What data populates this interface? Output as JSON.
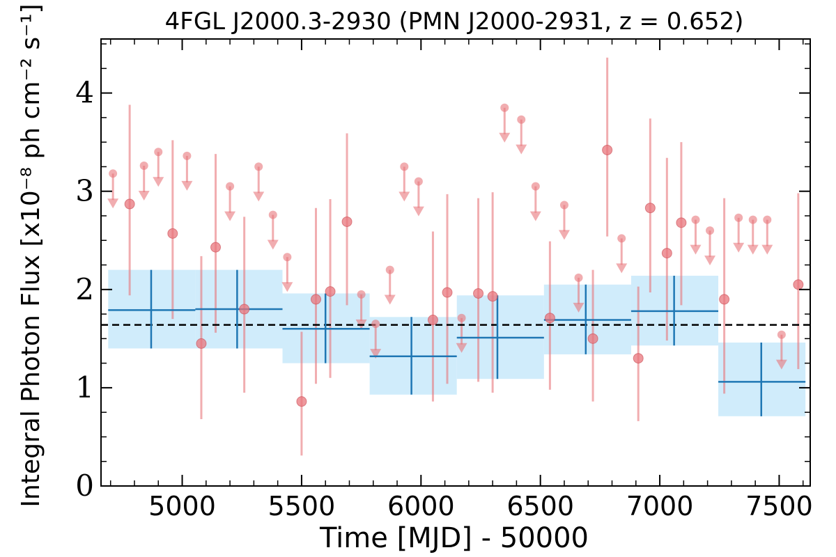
{
  "chart_data": {
    "type": "scatter",
    "title": "4FGL J2000.3-2930 (PMN J2000-2931, z = 0.652)",
    "xlabel": "Time [MJD] - 50000",
    "ylabel": "Integral Photon Flux [x10⁻⁸ ph cm⁻² s⁻¹]",
    "xlim": [
      4660,
      7630
    ],
    "ylim": [
      0,
      4.55
    ],
    "xticks": [
      5000,
      5500,
      6000,
      6500,
      7000,
      7500
    ],
    "xtick_labels": [
      "5000",
      "5500",
      "6000",
      "6500",
      "7000",
      "7500"
    ],
    "yticks": [
      0,
      1,
      2,
      3,
      4
    ],
    "ytick_labels": [
      "0",
      "1",
      "2",
      "3",
      "4"
    ],
    "grid": false,
    "colors": {
      "short_bin": "#e8767c",
      "long_bin": "#1f77b4",
      "long_bin_band": "#d0ecfb",
      "mean_line": "#000000"
    },
    "mean_flux": 1.64,
    "series": [
      {
        "role": "short_bin_detections",
        "points": [
          {
            "x": 4780,
            "y": 2.87,
            "lo": 1.94,
            "hi": 3.88
          },
          {
            "x": 4960,
            "y": 2.57,
            "lo": 1.7,
            "hi": 3.52
          },
          {
            "x": 5080,
            "y": 1.45,
            "lo": 0.68,
            "hi": 2.34
          },
          {
            "x": 5140,
            "y": 2.43,
            "lo": 1.56,
            "hi": 3.38
          },
          {
            "x": 5260,
            "y": 1.8,
            "lo": 0.95,
            "hi": 2.74
          },
          {
            "x": 5500,
            "y": 0.86,
            "lo": 0.31,
            "hi": 1.57
          },
          {
            "x": 5560,
            "y": 1.9,
            "lo": 1.04,
            "hi": 2.83
          },
          {
            "x": 5620,
            "y": 1.98,
            "lo": 1.1,
            "hi": 2.92
          },
          {
            "x": 5690,
            "y": 2.69,
            "lo": 1.84,
            "hi": 3.59
          },
          {
            "x": 6050,
            "y": 1.69,
            "lo": 0.86,
            "hi": 2.59
          },
          {
            "x": 6110,
            "y": 1.97,
            "lo": 1.04,
            "hi": 2.97
          },
          {
            "x": 6240,
            "y": 1.96,
            "lo": 1.06,
            "hi": 2.93
          },
          {
            "x": 6300,
            "y": 1.93,
            "lo": 0.95,
            "hi": 2.99
          },
          {
            "x": 6540,
            "y": 1.71,
            "lo": 0.98,
            "hi": 2.49
          },
          {
            "x": 6720,
            "y": 1.5,
            "lo": 0.86,
            "hi": 2.2
          },
          {
            "x": 6780,
            "y": 3.42,
            "lo": 2.54,
            "hi": 4.36
          },
          {
            "x": 6910,
            "y": 1.3,
            "lo": 0.66,
            "hi": 2.03
          },
          {
            "x": 6960,
            "y": 2.83,
            "lo": 1.97,
            "hi": 3.74
          },
          {
            "x": 7030,
            "y": 2.37,
            "lo": 1.48,
            "hi": 3.34
          },
          {
            "x": 7090,
            "y": 2.68,
            "lo": 1.84,
            "hi": 3.5
          },
          {
            "x": 7270,
            "y": 1.9,
            "lo": 0.94,
            "hi": 2.93
          },
          {
            "x": 7580,
            "y": 2.05,
            "lo": 1.19,
            "hi": 2.98
          }
        ]
      },
      {
        "role": "short_bin_upper_limits",
        "points": [
          {
            "x": 4710,
            "y": 3.18
          },
          {
            "x": 4840,
            "y": 3.26
          },
          {
            "x": 4900,
            "y": 3.4
          },
          {
            "x": 5020,
            "y": 3.36
          },
          {
            "x": 5200,
            "y": 3.05
          },
          {
            "x": 5320,
            "y": 3.25
          },
          {
            "x": 5380,
            "y": 2.76
          },
          {
            "x": 5440,
            "y": 2.33
          },
          {
            "x": 5750,
            "y": 1.95
          },
          {
            "x": 5810,
            "y": 1.65
          },
          {
            "x": 5870,
            "y": 2.2
          },
          {
            "x": 5930,
            "y": 3.25
          },
          {
            "x": 5990,
            "y": 3.1
          },
          {
            "x": 6170,
            "y": 1.71
          },
          {
            "x": 6350,
            "y": 3.85
          },
          {
            "x": 6420,
            "y": 3.73
          },
          {
            "x": 6480,
            "y": 3.05
          },
          {
            "x": 6600,
            "y": 2.86
          },
          {
            "x": 6660,
            "y": 2.12
          },
          {
            "x": 6840,
            "y": 2.52
          },
          {
            "x": 7150,
            "y": 2.71
          },
          {
            "x": 7210,
            "y": 2.6
          },
          {
            "x": 7330,
            "y": 2.73
          },
          {
            "x": 7390,
            "y": 2.71
          },
          {
            "x": 7450,
            "y": 2.71
          },
          {
            "x": 7510,
            "y": 1.54
          }
        ]
      },
      {
        "role": "long_bins",
        "bins": [
          {
            "x0": 4690,
            "x1": 5055,
            "y": 1.79,
            "lo": 1.4,
            "hi": 2.2,
            "xc": 4870
          },
          {
            "x0": 5055,
            "x1": 5420,
            "y": 1.8,
            "lo": 1.4,
            "hi": 2.2,
            "xc": 5230
          },
          {
            "x0": 5420,
            "x1": 5785,
            "y": 1.6,
            "lo": 1.25,
            "hi": 1.96,
            "xc": 5600
          },
          {
            "x0": 5785,
            "x1": 6150,
            "y": 1.32,
            "lo": 0.93,
            "hi": 1.72,
            "xc": 5960
          },
          {
            "x0": 6150,
            "x1": 6515,
            "y": 1.51,
            "lo": 1.09,
            "hi": 1.94,
            "xc": 6320
          },
          {
            "x0": 6515,
            "x1": 6880,
            "y": 1.69,
            "lo": 1.34,
            "hi": 2.05,
            "xc": 6690
          },
          {
            "x0": 6880,
            "x1": 7245,
            "y": 1.78,
            "lo": 1.43,
            "hi": 2.14,
            "xc": 7060
          },
          {
            "x0": 7245,
            "x1": 7610,
            "y": 1.06,
            "lo": 0.71,
            "hi": 1.46,
            "xc": 7425
          }
        ]
      }
    ]
  }
}
